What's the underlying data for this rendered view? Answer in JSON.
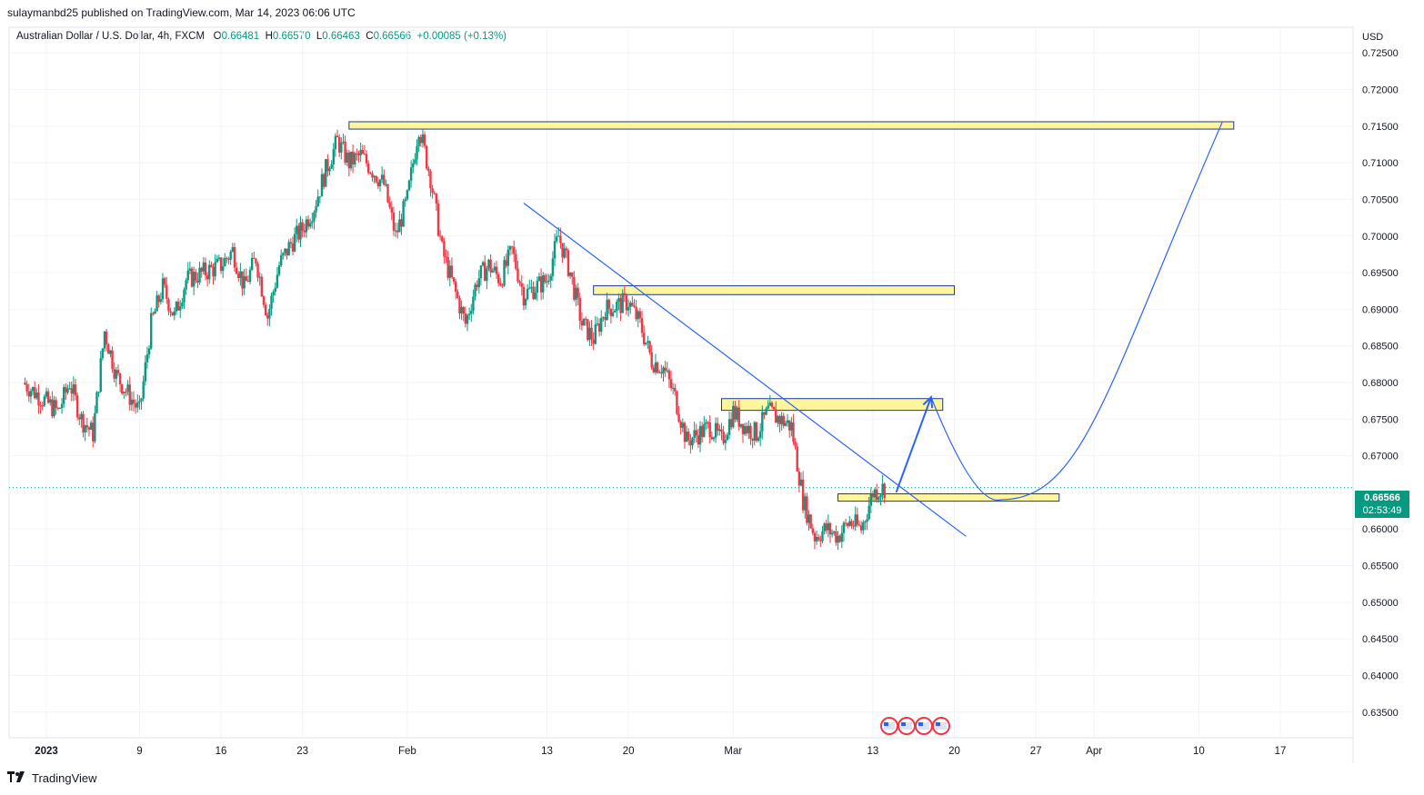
{
  "header": {
    "published": "sulaymanbd25 published on TradingView.com, Mar 14, 2023 06:06 UTC"
  },
  "legend": {
    "symbol": "Australian Dollar / U.S. Dollar, 4h, FXCM",
    "o_label": "O",
    "o_value": "0.66481",
    "h_label": "H",
    "h_value": "0.66570",
    "l_label": "L",
    "l_value": "0.66463",
    "c_label": "C",
    "c_value": "0.66566",
    "change": "+0.00085 (+0.13%)"
  },
  "price_scale": {
    "currency": "USD"
  },
  "last_price": {
    "value": "0.66566",
    "countdown": "02:53:49"
  },
  "footer": {
    "brand": "TradingView",
    "logo": "tradingview-logo-icon"
  },
  "colors": {
    "up": "#089981",
    "down": "#f23645",
    "zone_fill": "#fff59d",
    "zone_border": "#1e3a8a",
    "trendline": "#2962ff",
    "grid": "#f0f3fa"
  },
  "chart_data": {
    "type": "candlestick",
    "title": "",
    "interval": "4h",
    "ylim": [
      0.6315,
      0.7285
    ],
    "y_ticks": [
      "0.72500",
      "0.72000",
      "0.71500",
      "0.71000",
      "0.70500",
      "0.70000",
      "0.69500",
      "0.69000",
      "0.68500",
      "0.68000",
      "0.67500",
      "0.67000",
      "0.66000",
      "0.65500",
      "0.65000",
      "0.64500",
      "0.64000",
      "0.63500"
    ],
    "x_labels": [
      {
        "label": "2023",
        "date": "2023-01-01",
        "bold": true
      },
      {
        "label": "9",
        "date": "2023-01-09"
      },
      {
        "label": "16",
        "date": "2023-01-16"
      },
      {
        "label": "23",
        "date": "2023-01-23"
      },
      {
        "label": "Feb",
        "date": "2023-02-01"
      },
      {
        "label": "13",
        "date": "2023-02-13"
      },
      {
        "label": "20",
        "date": "2023-02-20"
      },
      {
        "label": "Mar",
        "date": "2023-03-01"
      },
      {
        "label": "13",
        "date": "2023-03-13"
      },
      {
        "label": "20",
        "date": "2023-03-20"
      },
      {
        "label": "27",
        "date": "2023-03-27"
      },
      {
        "label": "Apr",
        "date": "2023-04-01"
      },
      {
        "label": "10",
        "date": "2023-04-10"
      },
      {
        "label": "17",
        "date": "2023-04-17"
      }
    ],
    "price_path": [
      {
        "date": "2022-12-30",
        "close": 0.68
      },
      {
        "date": "2023-01-02",
        "close": 0.676
      },
      {
        "date": "2023-01-03",
        "close": 0.68
      },
      {
        "date": "2023-01-04",
        "close": 0.675
      },
      {
        "date": "2023-01-05",
        "close": 0.673
      },
      {
        "date": "2023-01-06",
        "close": 0.687
      },
      {
        "date": "2023-01-07",
        "close": 0.681
      },
      {
        "date": "2023-01-09",
        "close": 0.676
      },
      {
        "date": "2023-01-10",
        "close": 0.688
      },
      {
        "date": "2023-01-11",
        "close": 0.693
      },
      {
        "date": "2023-01-12",
        "close": 0.689
      },
      {
        "date": "2023-01-13",
        "close": 0.694
      },
      {
        "date": "2023-01-16",
        "close": 0.696
      },
      {
        "date": "2023-01-17",
        "close": 0.698
      },
      {
        "date": "2023-01-18",
        "close": 0.693
      },
      {
        "date": "2023-01-19",
        "close": 0.697
      },
      {
        "date": "2023-01-20",
        "close": 0.689
      },
      {
        "date": "2023-01-21",
        "close": 0.696
      },
      {
        "date": "2023-01-22",
        "close": 0.699
      },
      {
        "date": "2023-01-23",
        "close": 0.701
      },
      {
        "date": "2023-01-24",
        "close": 0.704
      },
      {
        "date": "2023-01-25",
        "close": 0.709
      },
      {
        "date": "2023-01-26",
        "close": 0.713
      },
      {
        "date": "2023-01-27",
        "close": 0.71
      },
      {
        "date": "2023-01-28",
        "close": 0.711
      },
      {
        "date": "2023-01-30",
        "close": 0.707
      },
      {
        "date": "2023-01-31",
        "close": 0.7
      },
      {
        "date": "2023-02-01",
        "close": 0.705
      },
      {
        "date": "2023-02-02",
        "close": 0.715
      },
      {
        "date": "2023-02-03",
        "close": 0.708
      },
      {
        "date": "2023-02-04",
        "close": 0.698
      },
      {
        "date": "2023-02-05",
        "close": 0.693
      },
      {
        "date": "2023-02-06",
        "close": 0.688
      },
      {
        "date": "2023-02-07",
        "close": 0.694
      },
      {
        "date": "2023-02-08",
        "close": 0.696
      },
      {
        "date": "2023-02-09",
        "close": 0.694
      },
      {
        "date": "2023-02-10",
        "close": 0.698
      },
      {
        "date": "2023-02-11",
        "close": 0.692
      },
      {
        "date": "2023-02-13",
        "close": 0.694
      },
      {
        "date": "2023-02-14",
        "close": 0.7
      },
      {
        "date": "2023-02-15",
        "close": 0.695
      },
      {
        "date": "2023-02-16",
        "close": 0.688
      },
      {
        "date": "2023-02-17",
        "close": 0.686
      },
      {
        "date": "2023-02-18",
        "close": 0.69
      },
      {
        "date": "2023-02-20",
        "close": 0.691
      },
      {
        "date": "2023-02-21",
        "close": 0.688
      },
      {
        "date": "2023-02-22",
        "close": 0.683
      },
      {
        "date": "2023-02-23",
        "close": 0.682
      },
      {
        "date": "2023-02-24",
        "close": 0.678
      },
      {
        "date": "2023-02-25",
        "close": 0.672
      },
      {
        "date": "2023-02-27",
        "close": 0.674
      },
      {
        "date": "2023-02-28",
        "close": 0.672
      },
      {
        "date": "2023-03-01",
        "close": 0.676
      },
      {
        "date": "2023-03-02",
        "close": 0.674
      },
      {
        "date": "2023-03-03",
        "close": 0.673
      },
      {
        "date": "2023-03-04",
        "close": 0.676
      },
      {
        "date": "2023-03-06",
        "close": 0.674
      },
      {
        "date": "2023-03-07",
        "close": 0.664
      },
      {
        "date": "2023-03-08",
        "close": 0.659
      },
      {
        "date": "2023-03-09",
        "close": 0.66
      },
      {
        "date": "2023-03-10",
        "close": 0.659
      },
      {
        "date": "2023-03-11",
        "close": 0.661
      },
      {
        "date": "2023-03-12",
        "close": 0.66
      },
      {
        "date": "2023-03-13",
        "close": 0.665
      },
      {
        "date": "2023-03-14",
        "close": 0.66566
      }
    ],
    "current_price": 0.66566,
    "supply_demand_zones": [
      {
        "top": 0.7156,
        "bottom": 0.7146,
        "from": "2023-01-27",
        "to": "2023-04-13"
      },
      {
        "top": 0.6932,
        "bottom": 0.692,
        "from": "2023-02-17",
        "to": "2023-03-20"
      },
      {
        "top": 0.6778,
        "bottom": 0.6762,
        "from": "2023-02-28",
        "to": "2023-03-19"
      },
      {
        "top": 0.6648,
        "bottom": 0.6638,
        "from": "2023-03-10",
        "to": "2023-03-29"
      }
    ],
    "trendline": {
      "from": {
        "date": "2023-02-11",
        "price": 0.7045
      },
      "to": {
        "date": "2023-03-21",
        "price": 0.659
      }
    },
    "projection_arrow": {
      "from": {
        "date": "2023-03-15",
        "price": 0.665
      },
      "to": {
        "date": "2023-03-18",
        "price": 0.678
      }
    },
    "projection_curve": [
      {
        "date": "2023-03-18",
        "price": 0.678
      },
      {
        "date": "2023-03-24",
        "price": 0.664
      },
      {
        "date": "2023-04-02",
        "price": 0.679
      },
      {
        "date": "2023-04-12",
        "price": 0.7155
      }
    ],
    "events": [
      {
        "flag": "us-flag-icon"
      },
      {
        "flag": "us-flag-icon"
      },
      {
        "flag": "us-flag-icon"
      },
      {
        "flag": "us-flag-icon"
      }
    ]
  }
}
